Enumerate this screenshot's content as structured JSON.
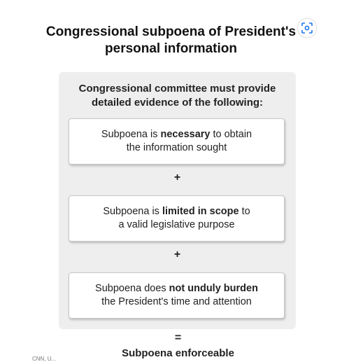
{
  "title": {
    "line1": "Congressional subpoena of President's",
    "line2": "personal information"
  },
  "icons": {
    "lens": "lens-scan-icon"
  },
  "panel": {
    "heading_line1": "Congressional committee must provide",
    "heading_line2": "detailed evidence of the following:",
    "conditions": [
      {
        "line1_pre": "Subpoena is ",
        "line1_bold": "necessary",
        "line1_post": " to obtain",
        "line2": "the information sought"
      },
      {
        "line1_pre": "Subpoena is ",
        "line1_bold": "limited in scope",
        "line1_post": " to",
        "line2": "a valid legislative purpose"
      },
      {
        "line1_pre": "Subpoena does ",
        "line1_bold": "not unduly burden",
        "line1_post": "",
        "line2": "the President's time and attention"
      }
    ],
    "plus_symbol": "+"
  },
  "equals_symbol": "=",
  "result": "Subpoena enforceable",
  "credit": "CNN, U..."
}
